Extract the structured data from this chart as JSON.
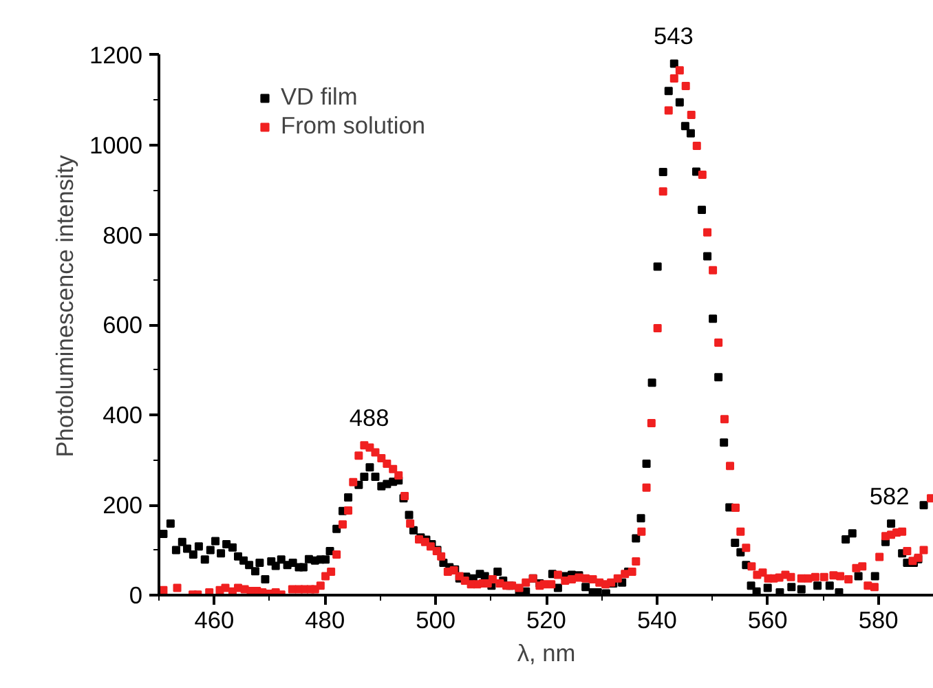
{
  "chart_data": {
    "type": "scatter",
    "xlabel": "λ, nm",
    "ylabel": "Photoluminescence intensity",
    "xlim": [
      450,
      590
    ],
    "ylim": [
      0,
      1200
    ],
    "xticks": [
      {
        "value": 450,
        "label": null
      },
      460,
      {
        "value": 470,
        "label": null
      },
      480,
      {
        "value": 490,
        "label": null
      },
      500,
      {
        "value": 510,
        "label": null
      },
      520,
      {
        "value": 530,
        "label": null
      },
      540,
      {
        "value": 550,
        "label": null
      },
      560,
      {
        "value": 570,
        "label": null
      },
      580,
      {
        "value": 590,
        "label": null
      }
    ],
    "yticks": [
      0,
      {
        "value": 100,
        "label": null
      },
      200,
      {
        "value": 300,
        "label": null
      },
      400,
      {
        "value": 500,
        "label": null
      },
      600,
      {
        "value": 700,
        "label": null
      },
      800,
      {
        "value": 900,
        "label": null
      },
      1000,
      {
        "value": 1100,
        "label": null
      },
      1200
    ],
    "grid": false,
    "legend": "top left",
    "marker": "square",
    "annotations": [
      {
        "text": "488",
        "x": 488,
        "y": 333
      },
      {
        "text": "543",
        "x": 543,
        "y": 1181
      },
      {
        "text": "582",
        "x": 582,
        "y": 159
      }
    ],
    "series": [
      {
        "name": "VD film",
        "color": "#000000",
        "x": [
          450.8,
          452.1,
          453.1,
          454.2,
          455.1,
          456.2,
          457.2,
          458.3,
          459.3,
          460.2,
          461.2,
          462.2,
          463.3,
          464.3,
          465.3,
          466.3,
          467.4,
          468.2,
          469.2,
          470.3,
          471.1,
          472.1,
          473.2,
          474.2,
          475.3,
          476.1,
          477.1,
          478.2,
          479.2,
          480.1,
          480.9,
          482.1,
          483.2,
          484.2,
          486.1,
          487.1,
          488.1,
          489.1,
          490.2,
          491.2,
          492.3,
          493.3,
          494.2,
          495.2,
          496.0,
          497.3,
          498.3,
          499.3,
          500.3,
          501.4,
          502.5,
          503.5,
          504.3,
          505.5,
          506.8,
          508.0,
          508.9,
          510.1,
          511.2,
          512.2,
          513.4,
          515.1,
          516.3,
          517.6,
          518.8,
          521.1,
          522.1,
          523.4,
          524.6,
          525.9,
          527.1,
          528.4,
          529.3,
          530.8,
          532.1,
          533.7,
          534.8,
          536.2,
          537.1,
          538.1,
          539.1,
          540.1,
          541.1,
          542.1,
          543.1,
          544.1,
          545.1,
          546.1,
          547.1,
          548.1,
          549.1,
          550.1,
          551.1,
          552.1,
          553.1,
          554.1,
          555.1,
          556.1,
          557.0,
          558.0,
          560.0,
          562.2,
          564.3,
          566.1,
          569.0,
          571.2,
          572.9,
          574.1,
          575.3,
          576.4,
          579.4,
          581.3,
          582.3,
          584.3,
          585.2,
          586.4,
          587.2,
          588.2
        ],
        "values": [
          136,
          159,
          100,
          118,
          103,
          90,
          108,
          79,
          100,
          120,
          93,
          113,
          106,
          86,
          77,
          67,
          53,
          72,
          35,
          75,
          65,
          79,
          67,
          72,
          62,
          62,
          80,
          77,
          79,
          79,
          98,
          147,
          187,
          217,
          245,
          263,
          284,
          263,
          242,
          247,
          252,
          255,
          215,
          178,
          144,
          128,
          123,
          113,
          100,
          72,
          62,
          57,
          37,
          41,
          37,
          47,
          42,
          21,
          52,
          32,
          21,
          8,
          8,
          37,
          26,
          47,
          16,
          42,
          45,
          44,
          18,
          6,
          6,
          4,
          26,
          28,
          52,
          126,
          171,
          292,
          472,
          730,
          940,
          1120,
          1181,
          1095,
          1042,
          1026,
          941,
          856,
          753,
          614,
          484,
          339,
          195,
          116,
          95,
          67,
          21,
          8,
          16,
          6,
          18,
          13,
          21,
          21,
          6,
          124,
          137,
          42,
          42,
          118,
          159,
          93,
          72,
          72,
          80,
          200
        ]
      },
      {
        "name": "From solution",
        "color": "#f02020",
        "x": [
          450.8,
          453.3,
          456.1,
          457.0,
          459.1,
          461.0,
          462.0,
          463.3,
          464.3,
          465.5,
          466.6,
          467.7,
          468.7,
          469.9,
          471.1,
          472.1,
          474.1,
          475.3,
          476.3,
          477.4,
          478.2,
          479.2,
          480.1,
          481.1,
          482.1,
          483.2,
          484.2,
          485.1,
          486.1,
          487.1,
          488.1,
          489.1,
          490.2,
          491.2,
          492.3,
          493.3,
          494.4,
          495.4,
          497.0,
          498.1,
          499.1,
          500.2,
          501.0,
          502.2,
          503.3,
          504.3,
          505.3,
          506.4,
          507.5,
          508.5,
          509.4,
          510.3,
          511.6,
          512.8,
          513.8,
          515.1,
          516.3,
          517.6,
          518.8,
          519.6,
          520.9,
          522.1,
          523.4,
          524.6,
          525.9,
          527.1,
          528.4,
          529.6,
          530.7,
          531.7,
          532.9,
          534.2,
          535.5,
          536.2,
          537.2,
          538.1,
          539.0,
          540.1,
          541.1,
          542.1,
          543.1,
          544.1,
          545.2,
          546.2,
          547.2,
          548.2,
          549.1,
          550.1,
          551.1,
          552.2,
          553.2,
          554.2,
          555.1,
          556.1,
          557.1,
          558.1,
          559.1,
          560.1,
          561.1,
          562.1,
          563.2,
          564.2,
          566.1,
          567.3,
          568.6,
          570.2,
          571.9,
          573.1,
          574.6,
          576.0,
          577.1,
          578.1,
          579.3,
          580.2,
          581.3,
          582.3,
          583.3,
          584.3,
          585.2,
          586.2,
          587.2,
          588.2,
          589.5
        ],
        "values": [
          11,
          16,
          1,
          1,
          6,
          11,
          16,
          8,
          16,
          13,
          9,
          9,
          6,
          3,
          6,
          1,
          13,
          13,
          13,
          13,
          13,
          21,
          42,
          52,
          90,
          157,
          188,
          251,
          310,
          333,
          328,
          317,
          304,
          292,
          280,
          266,
          220,
          159,
          124,
          118,
          108,
          98,
          86,
          52,
          55,
          42,
          32,
          24,
          24,
          26,
          26,
          35,
          26,
          21,
          21,
          16,
          28,
          37,
          21,
          24,
          24,
          45,
          32,
          35,
          39,
          37,
          35,
          28,
          24,
          28,
          37,
          47,
          52,
          75,
          141,
          239,
          382,
          593,
          897,
          1077,
          1148,
          1166,
          1131,
          1067,
          998,
          934,
          806,
          722,
          561,
          391,
          287,
          194,
          141,
          105,
          64,
          45,
          50,
          37,
          37,
          39,
          45,
          40,
          37,
          37,
          40,
          40,
          44,
          42,
          35,
          60,
          64,
          21,
          18,
          85,
          131,
          134,
          139,
          141,
          98,
          76,
          83,
          100,
          215
        ]
      }
    ]
  }
}
